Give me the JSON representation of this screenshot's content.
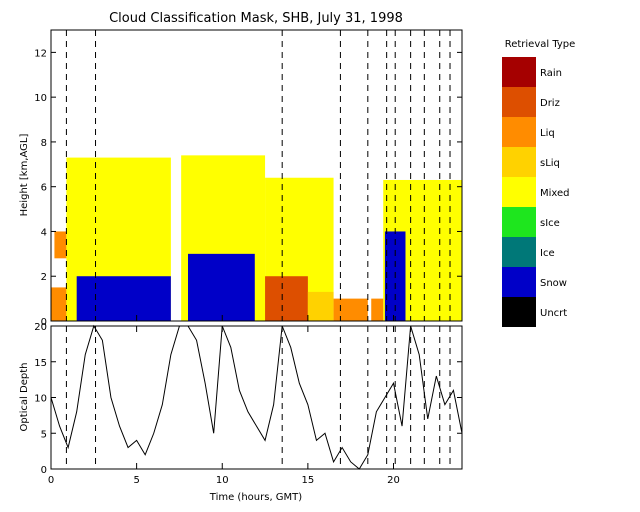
{
  "chart_data": [
    {
      "type": "heatmap",
      "title": "Cloud Classification Mask, SHB, July 31, 1998",
      "ylabel": "Height [km,AGL]",
      "xlim": [
        0,
        24
      ],
      "ylim": [
        0,
        13
      ],
      "yticks": [
        0,
        2,
        4,
        6,
        8,
        10,
        12
      ],
      "legend": {
        "title": "Retrieval Type",
        "placement": "right",
        "items": [
          {
            "label": "Rain",
            "color": "#a50000"
          },
          {
            "label": "Driz",
            "color": "#dd4f00"
          },
          {
            "label": "Liq",
            "color": "#ff8c00"
          },
          {
            "label": "sLiq",
            "color": "#ffd200"
          },
          {
            "label": "Mixed",
            "color": "#ffff00"
          },
          {
            "label": "sIce",
            "color": "#1ee61e"
          },
          {
            "label": "Ice",
            "color": "#007878"
          },
          {
            "label": "Snow",
            "color": "#0000c8"
          },
          {
            "label": "Uncrt",
            "color": "#000000"
          }
        ]
      },
      "dashed_times": [
        0.9,
        2.6,
        13.5,
        16.9,
        18.5,
        19.6,
        20.1,
        21.0,
        21.8,
        22.7,
        23.3
      ],
      "regions": [
        {
          "class": "Liq",
          "t0": 0.0,
          "t1": 0.9,
          "h0": 0.0,
          "h1": 1.5
        },
        {
          "class": "Liq",
          "t0": 0.2,
          "t1": 0.9,
          "h0": 2.8,
          "h1": 4.0
        },
        {
          "class": "Mixed",
          "t0": 0.9,
          "t1": 7.0,
          "h0": 0.0,
          "h1": 7.3
        },
        {
          "class": "Mixed",
          "t0": 7.6,
          "t1": 12.5,
          "h0": 0.0,
          "h1": 7.4
        },
        {
          "class": "Mixed",
          "t0": 12.5,
          "t1": 16.5,
          "h0": 0.0,
          "h1": 6.4
        },
        {
          "class": "Mixed",
          "t0": 19.4,
          "t1": 24.0,
          "h0": 0.0,
          "h1": 6.3
        },
        {
          "class": "Snow",
          "t0": 1.5,
          "t1": 7.0,
          "h0": 0.0,
          "h1": 2.0
        },
        {
          "class": "Snow",
          "t0": 8.0,
          "t1": 11.9,
          "h0": 0.0,
          "h1": 3.0
        },
        {
          "class": "Snow",
          "t0": 19.5,
          "t1": 20.7,
          "h0": 0.0,
          "h1": 4.0
        },
        {
          "class": "Driz",
          "t0": 12.5,
          "t1": 15.0,
          "h0": 0.0,
          "h1": 2.0
        },
        {
          "class": "sLiq",
          "t0": 15.0,
          "t1": 16.5,
          "h0": 0.0,
          "h1": 1.3
        },
        {
          "class": "Liq",
          "t0": 16.5,
          "t1": 18.5,
          "h0": 0.0,
          "h1": 1.0
        },
        {
          "class": "Liq",
          "t0": 18.7,
          "t1": 19.4,
          "h0": 0.0,
          "h1": 1.0
        }
      ]
    },
    {
      "type": "line",
      "ylabel": "Optical Depth",
      "xlabel": "Time (hours, GMT)",
      "xlim": [
        0,
        24
      ],
      "ylim": [
        0,
        20
      ],
      "xticks": [
        0,
        5,
        10,
        15,
        20
      ],
      "yticks": [
        0,
        5,
        10,
        15,
        20
      ],
      "x": [
        0,
        0.5,
        1,
        1.5,
        2,
        2.5,
        3,
        3.5,
        4,
        4.5,
        5,
        5.5,
        6,
        6.5,
        7,
        7.5,
        8,
        8.5,
        9,
        9.5,
        10,
        10.5,
        11,
        11.5,
        12,
        12.5,
        13,
        13.5,
        14,
        14.5,
        15,
        15.5,
        16,
        16.5,
        17,
        17.5,
        18,
        18.5,
        19,
        19.5,
        20,
        20.5,
        21,
        21.5,
        22,
        22.5,
        23,
        23.5,
        24
      ],
      "y": [
        10,
        6,
        3,
        8,
        16,
        20,
        18,
        10,
        6,
        3,
        4,
        2,
        5,
        9,
        16,
        20,
        20,
        18,
        12,
        5,
        20,
        17,
        11,
        8,
        6,
        4,
        9,
        20,
        17,
        12,
        9,
        4,
        5,
        1,
        3,
        1,
        0,
        2,
        8,
        10,
        12,
        6,
        20,
        16,
        7,
        13,
        9,
        11,
        5
      ]
    }
  ]
}
